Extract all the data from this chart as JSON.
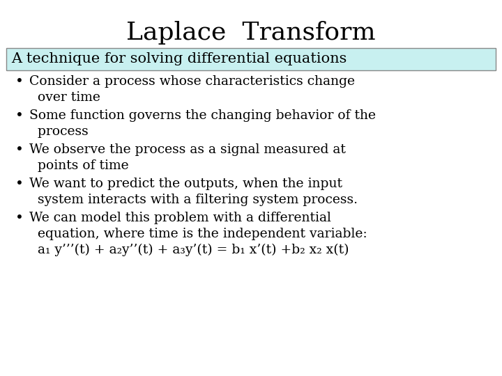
{
  "title": "Laplace  Transform",
  "subtitle": "A technique for solving differential equations",
  "subtitle_bg": "#c8f0f0",
  "subtitle_border": "#888888",
  "background_color": "#ffffff",
  "title_fontsize": 26,
  "subtitle_fontsize": 15,
  "bullet_fontsize": 13.5,
  "bullet_points": [
    "Consider a process whose characteristics change\n  over time",
    "Some function governs the changing behavior of the\n  process",
    "We observe the process as a signal measured at\n  points of time",
    "We want to predict the outputs, when the input\n  system interacts with a filtering system process.",
    "We can model this problem with a differential\n  equation, where time is the independent variable:\n  a₁ y’’’(t) + a₂y’’(t) + a₃y’(t) = b₁ x’(t) +b₂ x₂ x(t)"
  ],
  "text_color": "#000000",
  "font_family": "DejaVu Serif"
}
